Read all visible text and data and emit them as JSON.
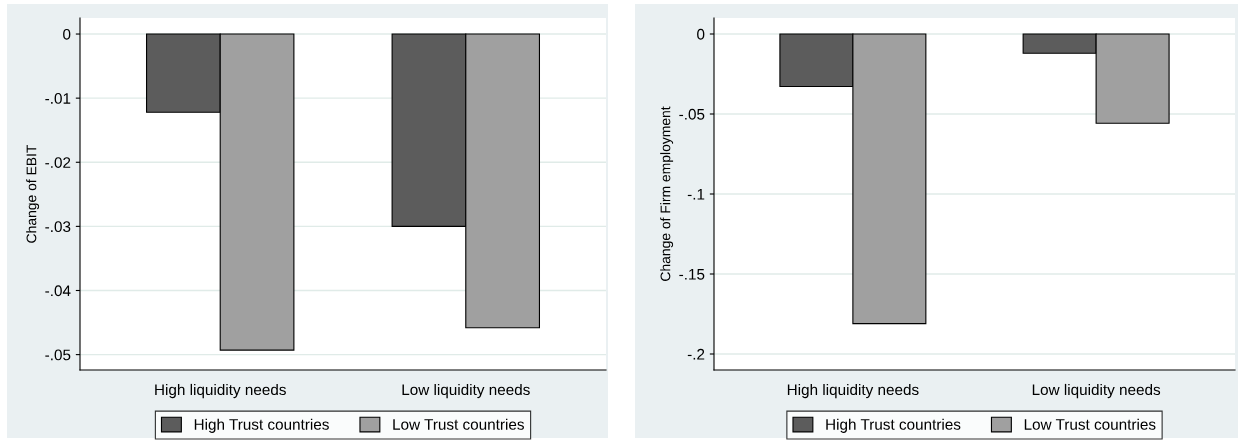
{
  "chart_data": [
    {
      "type": "bar",
      "categories": [
        "High liquidity needs",
        "Low liquidity needs"
      ],
      "ylabel": "Change of EBIT",
      "series": [
        {
          "name": "High Trust countries",
          "color": "#5c5c5c",
          "values": [
            -0.0122,
            -0.03
          ]
        },
        {
          "name": "Low Trust countries",
          "color": "#a0a0a0",
          "values": [
            -0.0493,
            -0.0458
          ]
        }
      ],
      "ylim": [
        -0.0524,
        0.0025
      ],
      "yticks": [
        {
          "value": 0,
          "label": "0"
        },
        {
          "value": -0.01,
          "label": "-.01"
        },
        {
          "value": -0.02,
          "label": "-.02"
        },
        {
          "value": -0.03,
          "label": "-.03"
        },
        {
          "value": -0.04,
          "label": "-.04"
        },
        {
          "value": -0.05,
          "label": "-.05"
        }
      ],
      "grid": "y",
      "legend": "bottom"
    },
    {
      "type": "bar",
      "categories": [
        "High liquidity needs",
        "Low liquidity needs"
      ],
      "ylabel": "Change of Firm employment",
      "series": [
        {
          "name": "High Trust countries",
          "color": "#5c5c5c",
          "values": [
            -0.0328,
            -0.012
          ]
        },
        {
          "name": "Low Trust countries",
          "color": "#a0a0a0",
          "values": [
            -0.181,
            -0.0558
          ]
        }
      ],
      "ylim": [
        -0.21,
        0.01
      ],
      "yticks": [
        {
          "value": 0,
          "label": "0"
        },
        {
          "value": -0.05,
          "label": "-.05"
        },
        {
          "value": -0.1,
          "label": "-.1"
        },
        {
          "value": -0.15,
          "label": "-.15"
        },
        {
          "value": -0.2,
          "label": "-.2"
        }
      ],
      "grid": "y",
      "legend": "bottom"
    }
  ]
}
